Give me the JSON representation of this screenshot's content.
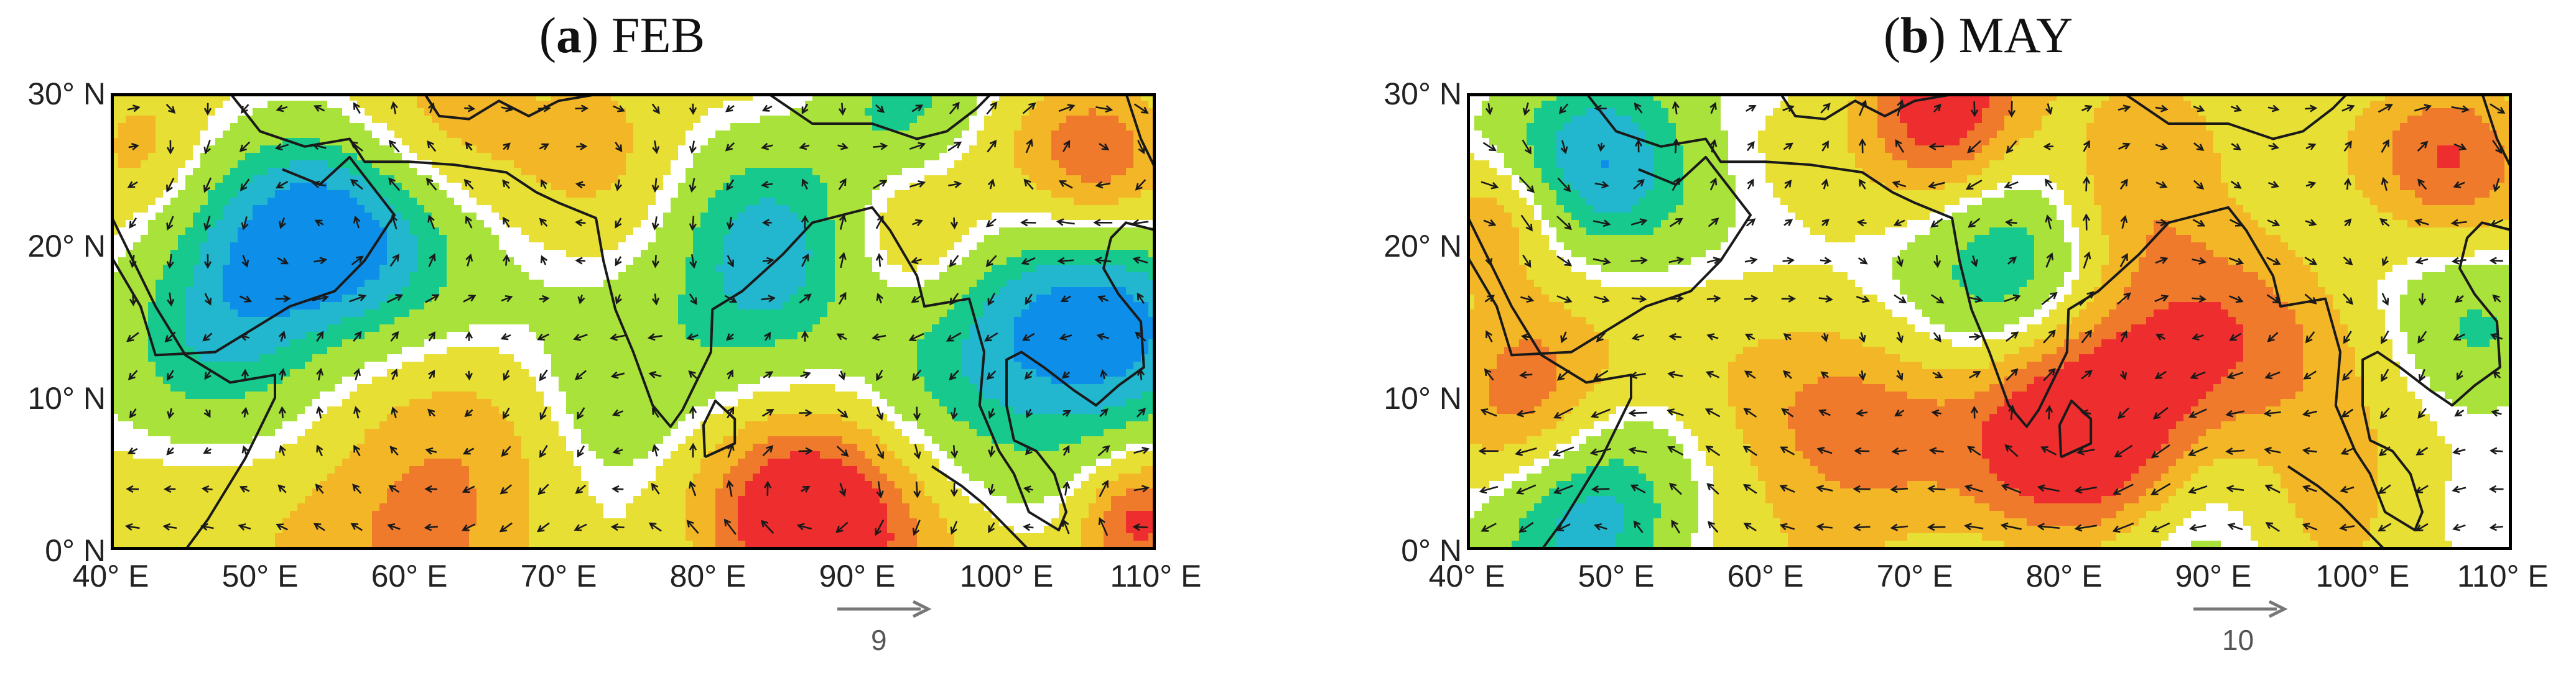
{
  "panels": [
    {
      "id": "a",
      "letter": "a",
      "month": "FEB",
      "reference_vector": "9",
      "lat_labels": [
        "30° N",
        "20° N",
        "10° N",
        "0° N"
      ],
      "lon_labels": [
        "40° E",
        "50° E",
        "60° E",
        "70° E",
        "80° E",
        "90° E",
        "100° E",
        "110° E"
      ],
      "lat_range": [
        0,
        30
      ],
      "lon_range": [
        40,
        110
      ],
      "anomalies": [
        {
          "lon": 55,
          "lat": 21,
          "value": -4,
          "spread": 6
        },
        {
          "lon": 47,
          "lat": 15,
          "value": -2.5,
          "spread": 5
        },
        {
          "lon": 84,
          "lat": 19,
          "value": -3.5,
          "spread": 5
        },
        {
          "lon": 106,
          "lat": 14,
          "value": -3.5,
          "spread": 6
        },
        {
          "lon": 96,
          "lat": 13,
          "value": -2,
          "spread": 5
        },
        {
          "lon": 93,
          "lat": 29,
          "value": -2.5,
          "spread": 4
        },
        {
          "lon": 74,
          "lat": 9,
          "value": -1.5,
          "spread": 4
        },
        {
          "lon": 87,
          "lat": 2,
          "value": 4.5,
          "spread": 5
        },
        {
          "lon": 109,
          "lat": 2,
          "value": 4,
          "spread": 3
        },
        {
          "lon": 62,
          "lat": 3,
          "value": 2.5,
          "spread": 6
        },
        {
          "lon": 106,
          "lat": 26,
          "value": 3,
          "spread": 4
        },
        {
          "lon": 62,
          "lat": 29,
          "value": 2,
          "spread": 5
        },
        {
          "lon": 94,
          "lat": 21,
          "value": 2,
          "spread": 4
        },
        {
          "lon": 73,
          "lat": 27,
          "value": 1.5,
          "spread": 4
        },
        {
          "lon": 42,
          "lat": 26,
          "value": 1.5,
          "spread": 3
        }
      ]
    },
    {
      "id": "b",
      "letter": "b",
      "month": "MAY",
      "reference_vector": "10",
      "lat_labels": [
        "30° N",
        "20° N",
        "10° N",
        "0° N"
      ],
      "lon_labels": [
        "40° E",
        "50° E",
        "60° E",
        "70° E",
        "80° E",
        "90° E",
        "100° E",
        "110° E"
      ],
      "lat_range": [
        0,
        30
      ],
      "lon_range": [
        40,
        110
      ],
      "anomalies": [
        {
          "lon": 49,
          "lat": 26,
          "value": -3.5,
          "spread": 5
        },
        {
          "lon": 77,
          "lat": 19,
          "value": -3,
          "spread": 5
        },
        {
          "lon": 48,
          "lat": 2,
          "value": -3.5,
          "spread": 5
        },
        {
          "lon": 89,
          "lat": 2,
          "value": -2,
          "spread": 5
        },
        {
          "lon": 107,
          "lat": 14,
          "value": -1.5,
          "spread": 4
        },
        {
          "lon": 81,
          "lat": 8,
          "value": 5,
          "spread": 5
        },
        {
          "lon": 72,
          "lat": 29,
          "value": 4.5,
          "spread": 4
        },
        {
          "lon": 66,
          "lat": 7,
          "value": 2.5,
          "spread": 6
        },
        {
          "lon": 90,
          "lat": 13,
          "value": 2.5,
          "spread": 6
        },
        {
          "lon": 106,
          "lat": 26,
          "value": 3,
          "spread": 4
        },
        {
          "lon": 44,
          "lat": 10,
          "value": 3,
          "spread": 4
        },
        {
          "lon": 84,
          "lat": 24,
          "value": 2,
          "spread": 4
        },
        {
          "lon": 42,
          "lat": 22,
          "value": 2,
          "spread": 3
        },
        {
          "lon": 98,
          "lat": 4,
          "value": 1.5,
          "spread": 4
        }
      ]
    }
  ],
  "colors": {
    "strong_negative": "#0d8ee8",
    "negative": "#22b7cf",
    "weak_negative": "#17c98c",
    "neutral_low": "#a9e23a",
    "zero_band": "#ffffff",
    "neutral_high": "#e8df35",
    "positive": "#f3b626",
    "strong_positive": "#f07a2c",
    "extreme_positive": "#ee2e2e",
    "coastline": "#1a1a1a",
    "arrow": "#1a1a1a"
  }
}
